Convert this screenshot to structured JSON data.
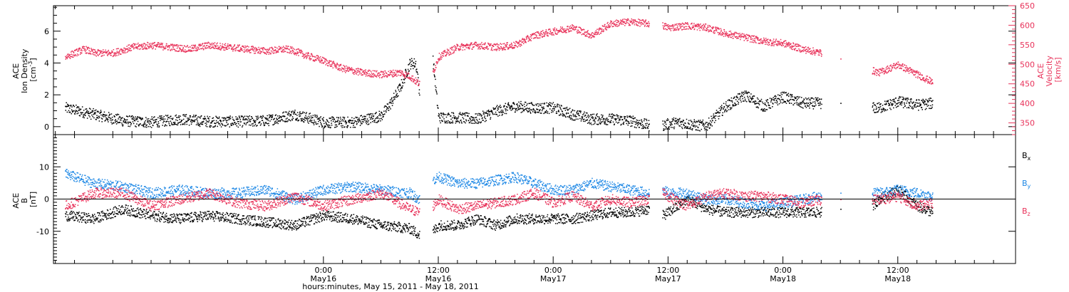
{
  "chart_data": [
    {
      "panel": "top",
      "type": "scatter",
      "y_left": {
        "title_lines": [
          "ACE",
          "Ion Density"
        ],
        "unit_base": "[cm",
        "unit_sup": "-3",
        "unit_close": "]",
        "range": [
          -0.5,
          7.6
        ],
        "ticks": [
          0,
          2,
          4,
          6
        ],
        "color": "#000000"
      },
      "y_right": {
        "title_lines": [
          "ACE",
          "Velocity",
          "[km/s]"
        ],
        "range": [
          320,
          650
        ],
        "ticks": [
          350,
          400,
          450,
          500,
          550,
          600,
          650
        ],
        "color": "#e8325a"
      },
      "series": [
        {
          "name": "",
          "color": "#000000",
          "axis": "left",
          "segments": [
            {
              "x": [
                -27,
                -24,
                -21,
                -18,
                -15,
                -12,
                -9,
                -6,
                -3,
                0,
                3,
                6,
                7,
                8,
                9,
                9.6,
                10
              ],
              "y": [
                1.2,
                0.8,
                0.4,
                0.3,
                0.5,
                0.35,
                0.35,
                0.4,
                0.8,
                0.3,
                0.3,
                0.7,
                1.5,
                2.5,
                4.0,
                4.0,
                2.2
              ]
            },
            {
              "x": [
                11.4,
                12,
                14,
                16,
                18,
                20,
                22,
                24,
                26,
                28,
                30,
                32,
                34
              ],
              "y": [
                4.2,
                0.6,
                0.6,
                0.5,
                1.0,
                1.3,
                1.2,
                1.2,
                0.8,
                0.5,
                0.5,
                0.4,
                0.1
              ]
            },
            {
              "x": [
                35.4,
                36,
                37,
                38,
                39,
                40,
                42,
                44,
                46,
                48,
                50,
                52
              ],
              "y": [
                0.1,
                0.2,
                0.3,
                0.2,
                0.1,
                0.1,
                1.3,
                2.0,
                1.3,
                1.9,
                1.5,
                1.5
              ]
            },
            {
              "x": [
                54
              ],
              "y": [
                1.5
              ]
            },
            {
              "x": [
                57.3,
                58,
                60,
                62,
                63.6
              ],
              "y": [
                1.2,
                1.2,
                1.6,
                1.4,
                1.5
              ]
            }
          ]
        },
        {
          "name": "",
          "color": "#e8325a",
          "axis": "right",
          "segments": [
            {
              "x": [
                -27,
                -25,
                -24,
                -22,
                -20,
                -18,
                -16,
                -14,
                -12,
                -10,
                -8,
                -6,
                -4,
                -3,
                -2,
                0,
                2,
                4,
                6,
                8,
                9,
                10
              ],
              "y": [
                520,
                540,
                530,
                530,
                545,
                550,
                545,
                540,
                550,
                545,
                540,
                535,
                540,
                535,
                525,
                510,
                490,
                480,
                475,
                480,
                470,
                450
              ]
            },
            {
              "x": [
                11.4,
                12,
                14,
                16,
                18,
                20,
                22,
                24,
                26,
                28,
                30,
                32,
                34
              ],
              "y": [
                480,
                520,
                545,
                550,
                545,
                550,
                575,
                585,
                595,
                575,
                605,
                610,
                605
              ]
            },
            {
              "x": [
                35.4,
                36,
                38,
                40,
                42,
                44,
                46,
                48,
                50,
                52
              ],
              "y": [
                600,
                595,
                600,
                595,
                580,
                570,
                560,
                555,
                540,
                530
              ]
            },
            {
              "x": [
                54
              ],
              "y": [
                515
              ]
            },
            {
              "x": [
                57.3,
                58,
                60,
                62,
                63.6
              ],
              "y": [
                485,
                480,
                500,
                475,
                455
              ]
            }
          ]
        }
      ]
    },
    {
      "panel": "bottom",
      "type": "scatter",
      "y_left": {
        "title_lines": [
          "ACE",
          "B",
          "[nT]"
        ],
        "range": [
          -20,
          20
        ],
        "ticks": [
          -10,
          0,
          10
        ],
        "color": "#000000"
      },
      "reference_line": 0,
      "series": [
        {
          "name": "B",
          "sub": "x",
          "color": "#000000",
          "segments": [
            {
              "x": [
                -27,
                -24,
                -21,
                -18,
                -15,
                -12,
                -9,
                -6,
                -3,
                0,
                3,
                6,
                9,
                10
              ],
              "y": [
                -5,
                -6,
                -3,
                -5,
                -6,
                -5,
                -6,
                -7,
                -8,
                -5,
                -6,
                -8,
                -9,
                -11
              ]
            },
            {
              "x": [
                11.4,
                12,
                14,
                16,
                18,
                20,
                22,
                24,
                26,
                28,
                30,
                32,
                34
              ],
              "y": [
                -10,
                -8,
                -8,
                -6,
                -8,
                -6,
                -6,
                -6,
                -6,
                -5,
                -4,
                -4,
                -3
              ]
            },
            {
              "x": [
                35.4,
                36,
                38,
                40,
                42,
                44,
                46,
                48,
                50,
                52
              ],
              "y": [
                -5,
                -4,
                0,
                -3,
                -4,
                -4,
                -4,
                -4,
                -4,
                -4
              ]
            },
            {
              "x": [
                54
              ],
              "y": [
                -3
              ]
            },
            {
              "x": [
                57.3,
                58,
                60,
                62,
                63.6
              ],
              "y": [
                -2,
                0,
                3,
                -2,
                -4
              ]
            }
          ]
        },
        {
          "name": "B",
          "sub": "y",
          "color": "#1e88e5",
          "segments": [
            {
              "x": [
                -27,
                -24,
                -21,
                -18,
                -15,
                -12,
                -9,
                -6,
                -3,
                0,
                3,
                6,
                9,
                10
              ],
              "y": [
                8,
                5,
                4,
                2,
                3,
                2,
                2,
                3,
                0,
                3,
                4,
                3,
                2,
                0
              ]
            },
            {
              "x": [
                11.4,
                12,
                14,
                16,
                18,
                20,
                22,
                24,
                26,
                28,
                30,
                32,
                34
              ],
              "y": [
                6,
                7,
                5,
                5,
                6,
                7,
                5,
                3,
                3,
                5,
                4,
                3,
                2
              ]
            },
            {
              "x": [
                35.4,
                36,
                38,
                40,
                42,
                44,
                46,
                48,
                50,
                52
              ],
              "y": [
                3,
                2,
                2,
                0,
                0,
                -1,
                -2,
                -1,
                0,
                1
              ]
            },
            {
              "x": [
                54
              ],
              "y": [
                2
              ]
            },
            {
              "x": [
                57.3,
                58,
                60,
                62,
                63.6
              ],
              "y": [
                2,
                2,
                3,
                2,
                1
              ]
            }
          ]
        },
        {
          "name": "B",
          "sub": "z",
          "color": "#e8325a",
          "segments": [
            {
              "x": [
                -27,
                -24,
                -21,
                -18,
                -15,
                -12,
                -9,
                -6,
                -3,
                0,
                3,
                6,
                9,
                10
              ],
              "y": [
                -2,
                2,
                2,
                -2,
                0,
                2,
                -1,
                -2,
                1,
                -2,
                0,
                2,
                -3,
                -4
              ]
            },
            {
              "x": [
                11.4,
                12,
                14,
                16,
                18,
                20,
                22,
                24,
                26,
                28,
                30,
                32,
                34
              ],
              "y": [
                -2,
                0,
                -3,
                -2,
                -1,
                0,
                2,
                -1,
                1,
                -2,
                0,
                -1,
                0
              ]
            },
            {
              "x": [
                35.4,
                36,
                38,
                40,
                42,
                44,
                46,
                48,
                50,
                52
              ],
              "y": [
                2,
                1,
                -2,
                1,
                2,
                1,
                1,
                0,
                -1,
                0
              ]
            },
            {
              "x": [
                54
              ],
              "y": [
                0
              ]
            },
            {
              "x": [
                57.3,
                58,
                60,
                62,
                63.6
              ],
              "y": [
                0,
                0,
                1,
                -2,
                -1
              ]
            }
          ]
        }
      ]
    }
  ],
  "x_axis": {
    "range": [
      -28.2,
      72.3
    ],
    "ticks": [
      {
        "value": 0,
        "time": "0:00",
        "day": "May16"
      },
      {
        "value": 12,
        "time": "12:00",
        "day": "May16"
      },
      {
        "value": 24,
        "time": "0:00",
        "day": "May17"
      },
      {
        "value": 36,
        "time": "12:00",
        "day": "May17"
      },
      {
        "value": 48,
        "time": "0:00",
        "day": "May18"
      },
      {
        "value": 60,
        "time": "12:00",
        "day": "May18"
      }
    ],
    "title": "hours:minutes, May 15, 2011 - May 18, 2011"
  }
}
